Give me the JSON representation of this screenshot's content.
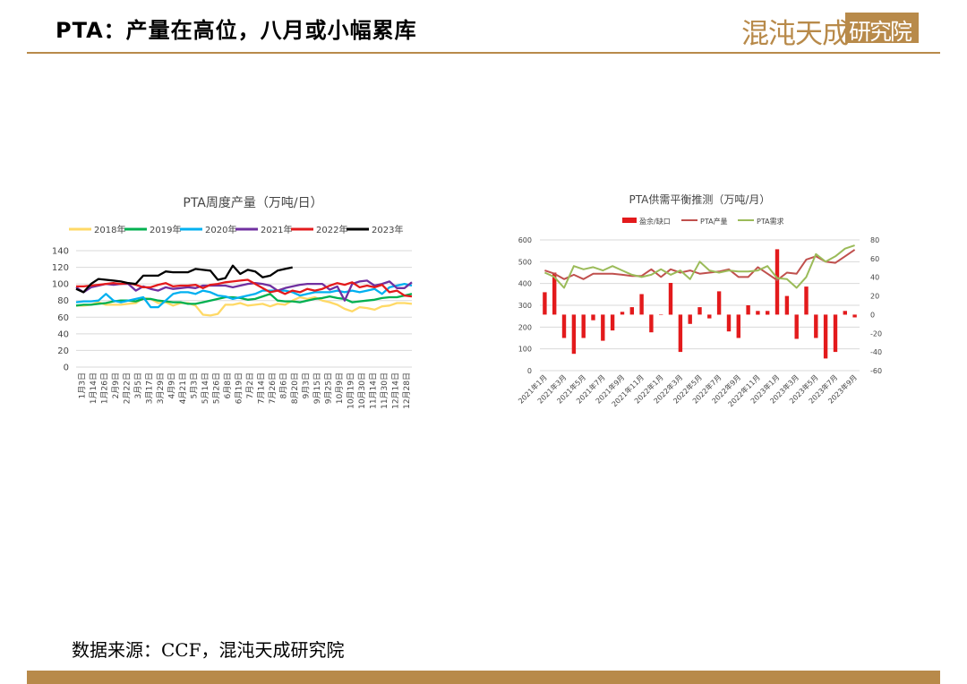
{
  "header": {
    "title": "PTA：产量在高位，八月或小幅累库",
    "logo_text": "混沌天成",
    "logo_box_text": "研究院"
  },
  "footer": {
    "source": "数据来源：CCF，混沌天成研究院"
  },
  "colors": {
    "accent": "#b88a4a",
    "series_2018": "#ffd966",
    "series_2019": "#00b050",
    "series_2020": "#00b0f0",
    "series_2021": "#7030a0",
    "series_2022": "#e31a1c",
    "series_2023": "#000000",
    "balance_bar": "#e31a1c",
    "production": "#c0504d",
    "demand": "#9bbb59"
  },
  "chart_data": [
    {
      "type": "line",
      "title": "PTA周度产量（万吨/日）",
      "xlabel": "",
      "ylabel": "",
      "ylim": [
        0,
        140
      ],
      "yticks": [
        0,
        20,
        40,
        60,
        80,
        100,
        120,
        140
      ],
      "grid": true,
      "legend": "top",
      "x_tick_labels": [
        "1月3日",
        "1月14日",
        "1月26日",
        "2月9日",
        "2月22日",
        "3月5日",
        "3月17日",
        "3月29日",
        "4月9日",
        "4月21日",
        "5月3日",
        "5月14日",
        "5月26日",
        "6月8日",
        "6月19日",
        "7月2日",
        "7月14日",
        "7月26日",
        "8月6日",
        "8月20日",
        "9月3日",
        "9月15日",
        "9月25日",
        "10月9日",
        "10月19日",
        "10月30日",
        "11月14日",
        "11月30日",
        "12月14日",
        "12月28日"
      ],
      "series": [
        {
          "name": "2018年",
          "color": "#ffd966",
          "values": [
            74,
            74,
            75,
            78,
            75,
            75,
            75,
            76,
            77,
            83,
            82,
            77,
            78,
            74,
            77,
            77,
            74,
            63,
            62,
            64,
            75,
            75,
            77,
            74,
            75,
            76,
            73,
            76,
            75,
            80,
            84,
            82,
            84,
            80,
            78,
            75,
            70,
            67,
            72,
            71,
            69,
            73,
            74,
            77,
            77,
            76
          ]
        },
        {
          "name": "2019年",
          "color": "#00b050",
          "values": [
            74,
            75,
            75,
            76,
            77,
            79,
            80,
            80,
            79,
            82,
            82,
            80,
            79,
            78,
            78,
            76,
            76,
            78,
            80,
            82,
            84,
            84,
            83,
            81,
            82,
            85,
            88,
            80,
            79,
            79,
            78,
            80,
            82,
            83,
            85,
            83,
            82,
            78,
            79,
            80,
            81,
            83,
            84,
            84,
            86,
            88
          ]
        },
        {
          "name": "2020年",
          "color": "#00b0f0",
          "values": [
            78,
            79,
            79,
            80,
            88,
            80,
            78,
            80,
            82,
            84,
            72,
            72,
            80,
            88,
            90,
            90,
            88,
            92,
            90,
            86,
            85,
            82,
            84,
            86,
            88,
            92,
            92,
            92,
            92,
            90,
            86,
            88,
            90,
            90,
            90,
            92,
            90,
            92,
            90,
            92,
            94,
            88,
            96,
            98,
            100,
            98
          ]
        },
        {
          "name": "2021年",
          "color": "#7030a0",
          "values": [
            96,
            90,
            96,
            98,
            100,
            99,
            100,
            100,
            92,
            97,
            94,
            92,
            96,
            94,
            95,
            96,
            95,
            98,
            98,
            98,
            98,
            96,
            98,
            100,
            101,
            100,
            98,
            92,
            95,
            97,
            99,
            100,
            100,
            100,
            93,
            97,
            80,
            100,
            103,
            104,
            98,
            100,
            103,
            95,
            95,
            102
          ]
        },
        {
          "name": "2022年",
          "color": "#e31a1c",
          "values": [
            97,
            97,
            98,
            99,
            100,
            101,
            100,
            101,
            99,
            96,
            96,
            99,
            101,
            97,
            98,
            98,
            99,
            95,
            99,
            100,
            102,
            103,
            104,
            105,
            100,
            95,
            90,
            92,
            88,
            92,
            90,
            94,
            92,
            94,
            98,
            101,
            99,
            102,
            96,
            98,
            96,
            99,
            90,
            92,
            86,
            85
          ]
        },
        {
          "name": "2023年",
          "color": "#000000",
          "values": [
            94,
            90,
            100,
            106,
            105,
            104,
            103,
            101,
            100,
            110,
            110,
            110,
            115,
            114,
            114,
            114,
            118,
            117,
            116,
            105,
            107,
            122,
            112,
            117,
            115,
            108,
            110,
            116,
            118,
            120
          ]
        }
      ]
    },
    {
      "type": "bar+line",
      "title": "PTA供需平衡推测（万吨/月）",
      "xlabel": "",
      "ylabel": "",
      "ylim": [
        0,
        600
      ],
      "y2lim": [
        -60,
        80
      ],
      "yticks": [
        0,
        100,
        200,
        300,
        400,
        500,
        600
      ],
      "y2ticks": [
        -60,
        -40,
        -20,
        0,
        20,
        40,
        60,
        80
      ],
      "grid": true,
      "legend": "top",
      "x_tick_labels": [
        "2021年1月",
        "2021年3月",
        "2021年5月",
        "2021年7月",
        "2021年9月",
        "2021年11月",
        "2022年1月",
        "2022年3月",
        "2022年5月",
        "2022年7月",
        "2022年9月",
        "2022年11月",
        "2023年1月",
        "2023年3月",
        "2023年5月",
        "2023年7月",
        "2023年9月"
      ],
      "categories": [
        "2021年1月",
        "2021年2月",
        "2021年3月",
        "2021年4月",
        "2021年5月",
        "2021年6月",
        "2021年7月",
        "2021年8月",
        "2021年9月",
        "2021年10月",
        "2021年11月",
        "2021年12月",
        "2022年1月",
        "2022年2月",
        "2022年3月",
        "2022年4月",
        "2022年5月",
        "2022年6月",
        "2022年7月",
        "2022年8月",
        "2022年9月",
        "2022年10月",
        "2022年11月",
        "2022年12月",
        "2023年1月",
        "2023年2月",
        "2023年3月",
        "2023年4月",
        "2023年5月",
        "2023年6月",
        "2023年7月",
        "2023年8月",
        "2023年9月"
      ],
      "series": [
        {
          "name": "盈余/缺口",
          "kind": "bar",
          "axis": "right",
          "color": "#e31a1c",
          "values": [
            24,
            45,
            -25,
            -42,
            -25,
            -6,
            -28,
            -17,
            3,
            8,
            22,
            -19,
            0,
            34,
            -40,
            -10,
            8,
            -4,
            25,
            -18,
            -25,
            10,
            4,
            4,
            70,
            20,
            -26,
            30,
            -25,
            -47,
            -40,
            4,
            -3
          ]
        },
        {
          "name": "PTA产量",
          "kind": "line",
          "axis": "left",
          "color": "#c0504d",
          "values": [
            460,
            445,
            420,
            440,
            420,
            445,
            445,
            445,
            440,
            435,
            435,
            465,
            430,
            465,
            450,
            460,
            445,
            450,
            455,
            465,
            430,
            430,
            475,
            445,
            415,
            450,
            445,
            510,
            525,
            500,
            495,
            525,
            555
          ]
        },
        {
          "name": "PTA需求",
          "kind": "line",
          "axis": "left",
          "color": "#9bbb59",
          "values": [
            450,
            430,
            380,
            480,
            465,
            475,
            460,
            480,
            460,
            440,
            430,
            440,
            465,
            440,
            460,
            420,
            500,
            460,
            450,
            460,
            455,
            455,
            460,
            480,
            425,
            420,
            380,
            430,
            535,
            500,
            525,
            560,
            575
          ]
        }
      ]
    }
  ]
}
